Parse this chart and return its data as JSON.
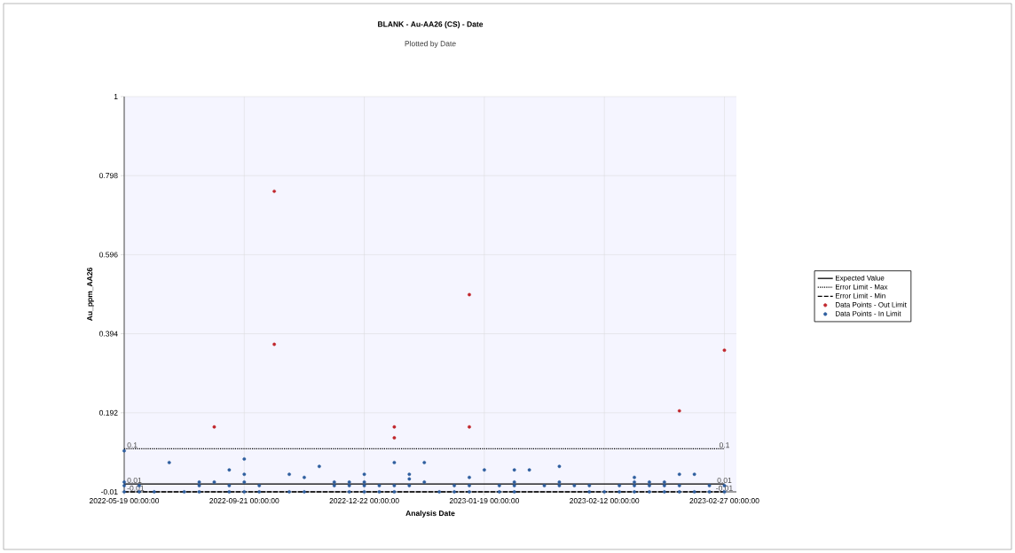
{
  "chart_data": {
    "type": "scatter",
    "title": "BLANK - Au-AA26 (CS) - Date",
    "subtitle": "Plotted by Date",
    "xlabel": "Analysis Date",
    "ylabel": "Au_ppm_AA26",
    "categories": [
      "2022-05-19 00:00:00",
      null,
      null,
      null,
      null,
      null,
      null,
      null,
      "2022-09-21 00:00:00",
      null,
      null,
      null,
      null,
      null,
      null,
      null,
      "2022-12-22 00:00:00",
      null,
      null,
      null,
      null,
      null,
      null,
      null,
      "2023-01-19 00:00:00",
      null,
      null,
      null,
      null,
      null,
      null,
      null,
      "2023-02-12 00:00:00",
      null,
      null,
      null,
      null,
      null,
      null,
      null,
      "2023-02-27 00:00:00"
    ],
    "ylim": [
      -0.01,
      1
    ],
    "yticks": [
      -0.01,
      0.192,
      0.394,
      0.596,
      0.798,
      1
    ],
    "grid": true,
    "legend": "right",
    "series": [
      {
        "name": "Expected Value",
        "type": "line",
        "line_style": "solid",
        "color": "#000000",
        "values": [
          0.01,
          0.01,
          0.01,
          0.01,
          0.01,
          0.01,
          0.01,
          0.01,
          0.01,
          0.01,
          0.01,
          0.01,
          0.01,
          0.01,
          0.01,
          0.01,
          0.01,
          0.01,
          0.01,
          0.01,
          0.01,
          0.01,
          0.01,
          0.01,
          0.01,
          0.01,
          0.01,
          0.01,
          0.01,
          0.01,
          0.01,
          0.01,
          0.01,
          0.01,
          0.01,
          0.01,
          0.01,
          0.01,
          0.01,
          0.01,
          0.01
        ],
        "value_labels": [
          "0.01",
          null,
          null,
          null,
          null,
          null,
          null,
          null,
          null,
          null,
          null,
          null,
          null,
          null,
          null,
          null,
          null,
          null,
          null,
          null,
          null,
          null,
          null,
          null,
          null,
          null,
          null,
          null,
          null,
          null,
          null,
          null,
          null,
          null,
          null,
          null,
          null,
          null,
          null,
          null,
          "0.01"
        ]
      },
      {
        "name": "Error Limit - Max",
        "type": "line",
        "line_style": "dotted",
        "color": "#000000",
        "values": [
          0.1,
          0.1,
          0.1,
          0.1,
          0.1,
          0.1,
          0.1,
          0.1,
          0.1,
          0.1,
          0.1,
          0.1,
          0.1,
          0.1,
          0.1,
          0.1,
          0.1,
          0.1,
          0.1,
          0.1,
          0.1,
          0.1,
          0.1,
          0.1,
          0.1,
          0.1,
          0.1,
          0.1,
          0.1,
          0.1,
          0.1,
          0.1,
          0.1,
          0.1,
          0.1,
          0.1,
          0.1,
          0.1,
          0.1,
          0.1,
          0.1
        ],
        "value_labels": [
          "0.1",
          null,
          null,
          null,
          null,
          null,
          null,
          null,
          null,
          null,
          null,
          null,
          null,
          null,
          null,
          null,
          null,
          null,
          null,
          null,
          null,
          null,
          null,
          null,
          null,
          null,
          null,
          null,
          null,
          null,
          null,
          null,
          null,
          null,
          null,
          null,
          null,
          null,
          null,
          null,
          "0.1"
        ]
      },
      {
        "name": "Error Limit - Min",
        "type": "line",
        "line_style": "dashed",
        "color": "#000000",
        "values": [
          -0.01,
          -0.01,
          -0.01,
          -0.01,
          -0.01,
          -0.01,
          -0.01,
          -0.01,
          -0.01,
          -0.01,
          -0.01,
          -0.01,
          -0.01,
          -0.01,
          -0.01,
          -0.01,
          -0.01,
          -0.01,
          -0.01,
          -0.01,
          -0.01,
          -0.01,
          -0.01,
          -0.01,
          -0.01,
          -0.01,
          -0.01,
          -0.01,
          -0.01,
          -0.01,
          -0.01,
          -0.01,
          -0.01,
          -0.01,
          -0.01,
          -0.01,
          -0.01,
          -0.01,
          -0.01,
          -0.01,
          -0.01
        ],
        "value_labels": [
          "-0.01",
          null,
          null,
          null,
          null,
          null,
          null,
          null,
          null,
          null,
          null,
          null,
          null,
          null,
          null,
          null,
          null,
          null,
          null,
          null,
          null,
          null,
          null,
          null,
          null,
          null,
          null,
          null,
          null,
          null,
          null,
          null,
          null,
          null,
          null,
          null,
          null,
          null,
          null,
          null,
          "-0.01"
        ]
      },
      {
        "name": "Data Points - Out Limit",
        "marker": "circle",
        "color": "#c0262c",
        "values": [
          null,
          null,
          null,
          null,
          null,
          null,
          0.156,
          null,
          null,
          null,
          0.758,
          null,
          null,
          null,
          null,
          null,
          null,
          null,
          0.156,
          null,
          null,
          null,
          null,
          0.494,
          null,
          null,
          null,
          null,
          null,
          null,
          null,
          null,
          null,
          null,
          null,
          null,
          null,
          0.197,
          null,
          null,
          0.352
        ]
      },
      {
        "marker": "circle",
        "color": "#c0262c",
        "values": [
          null,
          null,
          null,
          null,
          null,
          null,
          null,
          null,
          null,
          null,
          0.367,
          null,
          null,
          null,
          null,
          null,
          null,
          null,
          0.128,
          null,
          null,
          null,
          null,
          0.156,
          null,
          null,
          null,
          null,
          null,
          null,
          null,
          null,
          null,
          null,
          null,
          null,
          null,
          null,
          null,
          null,
          null
        ]
      },
      {
        "name": "Data Points - In Limit",
        "marker": "circle",
        "color": "#2e5e9e",
        "values": [
          0.095,
          0.006,
          -0.01,
          0.065,
          -0.01,
          0.015,
          0.015,
          0.046,
          0.074,
          0.006,
          null,
          0.035,
          0.027,
          0.055,
          0.015,
          0.015,
          0.035,
          0.006,
          0.065,
          0.035,
          0.065,
          -0.01,
          0.006,
          0.027,
          0.046,
          0.006,
          0.046,
          0.046,
          0.006,
          0.055,
          0.006,
          0.006,
          -0.01,
          0.006,
          0.027,
          0.015,
          0.015,
          0.035,
          0.035,
          0.006,
          0.006
        ]
      },
      {
        "marker": "circle",
        "color": "#2e5e9e",
        "values": [
          0.015,
          -0.01,
          null,
          null,
          null,
          0.006,
          null,
          0.006,
          0.035,
          -0.01,
          null,
          -0.01,
          -0.01,
          null,
          0.006,
          0.006,
          0.015,
          -0.01,
          0.006,
          0.023,
          0.015,
          null,
          -0.01,
          0.006,
          null,
          -0.01,
          0.015,
          null,
          null,
          0.015,
          null,
          -0.01,
          null,
          -0.01,
          0.015,
          0.006,
          0.006,
          0.006,
          -0.01,
          -0.01,
          -0.01
        ]
      },
      {
        "marker": "circle",
        "color": "#2e5e9e",
        "values": [
          0.006,
          null,
          null,
          null,
          null,
          -0.01,
          null,
          -0.01,
          0.015,
          null,
          null,
          null,
          null,
          null,
          null,
          -0.01,
          0.006,
          null,
          -0.01,
          0.006,
          null,
          null,
          null,
          -0.01,
          null,
          null,
          0.006,
          null,
          null,
          0.006,
          null,
          null,
          null,
          null,
          0.006,
          -0.01,
          -0.01,
          -0.01,
          null,
          null,
          null
        ]
      },
      {
        "marker": "circle",
        "color": "#2e5e9e",
        "values": [
          -0.01,
          null,
          null,
          null,
          null,
          null,
          null,
          null,
          -0.01,
          null,
          null,
          null,
          null,
          null,
          null,
          null,
          -0.01,
          null,
          null,
          null,
          null,
          null,
          null,
          null,
          null,
          null,
          -0.01,
          null,
          null,
          null,
          null,
          null,
          null,
          null,
          -0.01,
          null,
          null,
          null,
          null,
          null,
          null
        ]
      }
    ]
  }
}
